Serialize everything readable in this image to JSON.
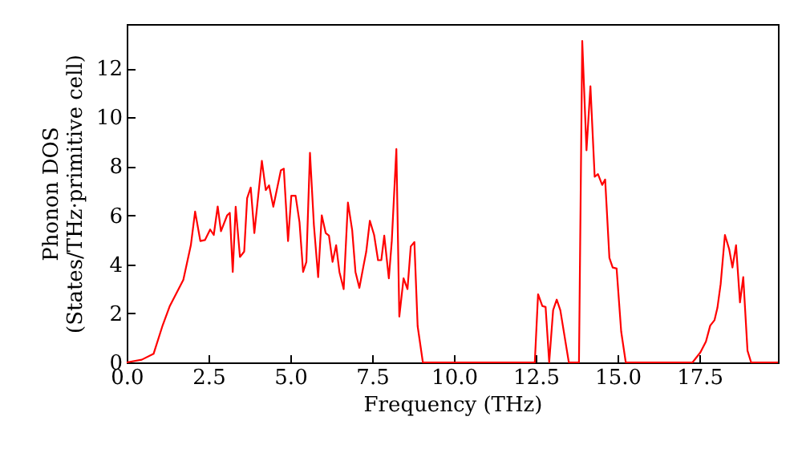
{
  "chart_data": {
    "type": "line",
    "xlabel": "Frequency (THz)",
    "ylabel": "Phonon DOS\n(States/THz·primitive cell)",
    "x": [
      0,
      0.46,
      0.82,
      1.1,
      1.31,
      1.73,
      1.96,
      2.09,
      2.25,
      2.39,
      2.55,
      2.66,
      2.78,
      2.88,
      3.07,
      3.15,
      3.24,
      3.33,
      3.46,
      3.59,
      3.68,
      3.79,
      3.9,
      4.13,
      4.25,
      4.35,
      4.48,
      4.71,
      4.8,
      4.93,
      5.03,
      5.16,
      5.28,
      5.39,
      5.49,
      5.6,
      5.72,
      5.85,
      5.96,
      6.08,
      6.18,
      6.29,
      6.4,
      6.5,
      6.63,
      6.76,
      6.89,
      6.99,
      7.11,
      7.24,
      7.32,
      7.43,
      7.56,
      7.68,
      7.78,
      7.87,
      8.01,
      8.1,
      8.24,
      8.33,
      8.46,
      8.58,
      8.68,
      8.79,
      8.89,
      9.05,
      12.47,
      12.57,
      12.7,
      12.8,
      12.91,
      13.03,
      13.14,
      13.25,
      13.51,
      13.82,
      13.92,
      14.05,
      14.17,
      14.3,
      14.4,
      14.53,
      14.62,
      14.75,
      14.85,
      14.97,
      15.11,
      15.25,
      17.29,
      17.53,
      17.7,
      17.83,
      17.96,
      18.05,
      18.15,
      18.28,
      18.41,
      18.51,
      18.62,
      18.74,
      18.84,
      18.97,
      19.08,
      19.9
    ],
    "series": [
      {
        "color": "#ff0000",
        "values": [
          0,
          0.11,
          0.35,
          1.52,
          2.28,
          3.37,
          4.78,
          6.15,
          4.95,
          4.99,
          5.42,
          5.2,
          6.36,
          5.35,
          6.0,
          6.1,
          3.69,
          6.35,
          4.3,
          4.52,
          6.7,
          7.13,
          5.28,
          8.22,
          7.03,
          7.22,
          6.35,
          7.83,
          7.9,
          4.95,
          6.8,
          6.8,
          5.72,
          3.69,
          4.1,
          8.55,
          5.6,
          3.48,
          6.0,
          5.28,
          5.17,
          4.1,
          4.78,
          3.69,
          2.99,
          6.52,
          5.39,
          3.69,
          3.04,
          3.97,
          4.52,
          5.78,
          5.2,
          4.17,
          4.17,
          5.17,
          3.43,
          4.95,
          8.7,
          1.87,
          3.43,
          2.99,
          4.73,
          4.91,
          1.48,
          0,
          0,
          2.78,
          2.3,
          2.26,
          0,
          2.13,
          2.56,
          2.13,
          0,
          0,
          13.11,
          8.65,
          11.26,
          7.57,
          7.68,
          7.24,
          7.46,
          4.26,
          3.87,
          3.83,
          1.26,
          0,
          0,
          0.41,
          0.85,
          1.5,
          1.72,
          2.22,
          3.2,
          5.2,
          4.62,
          3.87,
          4.78,
          2.45,
          3.48,
          0.48,
          0,
          0
        ]
      }
    ],
    "xlim": [
      0,
      19.9
    ],
    "ylim": [
      0,
      13.8
    ],
    "xticks": [
      {
        "value": 0,
        "label": "0.0"
      },
      {
        "value": 2.5,
        "label": "2.5"
      },
      {
        "value": 5,
        "label": "5.0"
      },
      {
        "value": 7.5,
        "label": "7.5"
      },
      {
        "value": 10,
        "label": "10.0"
      },
      {
        "value": 12.5,
        "label": "12.5"
      },
      {
        "value": 15,
        "label": "15.0"
      },
      {
        "value": 17.5,
        "label": "17.5"
      }
    ],
    "yticks": [
      0,
      2,
      4,
      6,
      8,
      10,
      12
    ],
    "grid": false,
    "marker": "none",
    "line_style": "solid"
  }
}
